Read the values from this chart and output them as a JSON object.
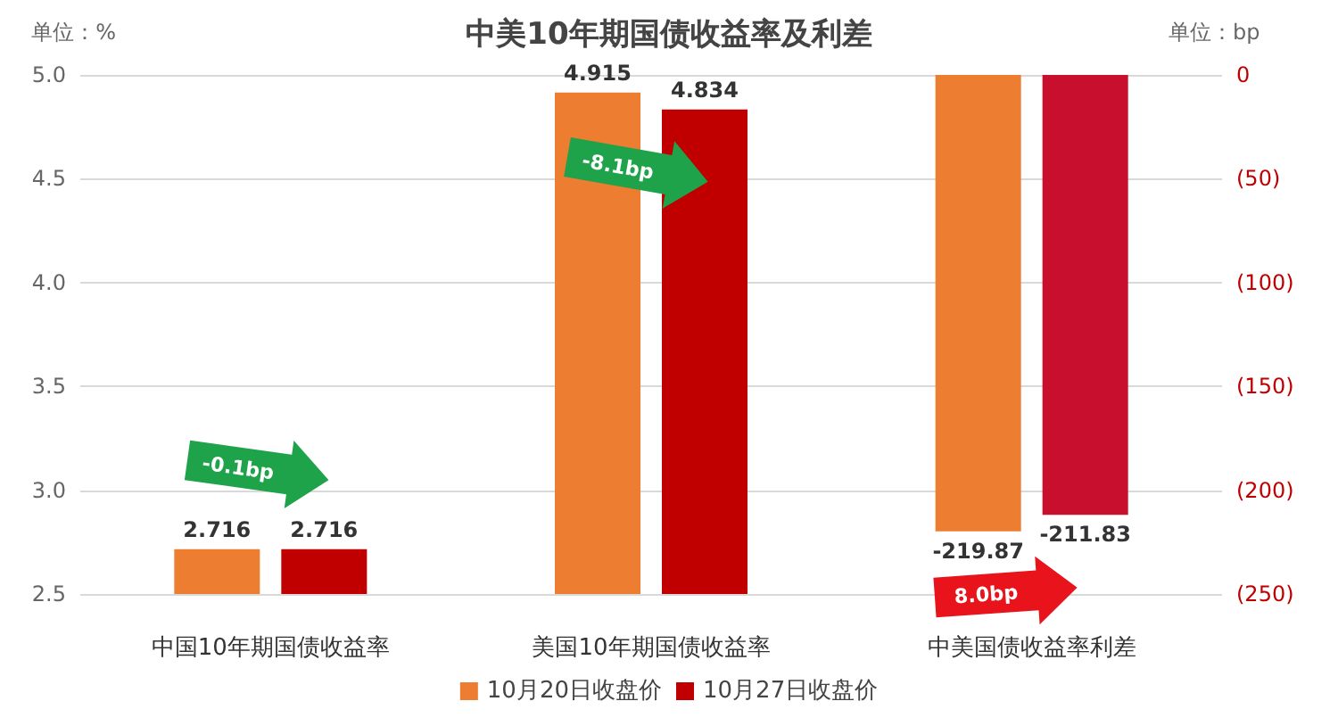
{
  "chart_data": {
    "type": "bar",
    "title": "中美10年期国债收益率及利差",
    "ylabel": "单位：%",
    "y2label": "单位：bp",
    "categories": [
      "中国10年期国债收益率",
      "美国10年期国债收益率",
      "中美国债收益率利差"
    ],
    "series": [
      {
        "name": "10月20日收盘价",
        "color": "#ed7d31",
        "values": [
          2.716,
          4.915,
          null
        ]
      },
      {
        "name": "10月27日收盘价",
        "color": "#c00000",
        "values": [
          2.716,
          4.834,
          null
        ]
      },
      {
        "color": "#ed7d31",
        "axis": "y2",
        "values": [
          null,
          null,
          -219.87
        ]
      },
      {
        "color": "#c8102e",
        "axis": "y2",
        "values": [
          null,
          null,
          -211.83
        ]
      }
    ],
    "ylim": [
      2.5,
      5.0
    ],
    "yticks": [
      {
        "value": 2.5,
        "label": "2.5"
      },
      {
        "value": 3,
        "label": "3.0"
      },
      {
        "value": 3.5,
        "label": "3.5"
      },
      {
        "value": 4,
        "label": "4.0"
      },
      {
        "value": 4.5,
        "label": "4.5"
      },
      {
        "value": 5,
        "label": "5.0"
      }
    ],
    "y2lim": [
      -250,
      0
    ],
    "y2ticks": [
      {
        "value": -250,
        "label": "(250)"
      },
      {
        "value": -200,
        "label": "(200)"
      },
      {
        "value": -150,
        "label": "(150)"
      },
      {
        "value": -100,
        "label": "(100)"
      },
      {
        "value": -50,
        "label": "(50)"
      },
      {
        "value": 0,
        "label": "0"
      }
    ],
    "annotations": [
      "-0.1bp",
      "-8.1bp",
      "8.0bp"
    ],
    "data_labels": true,
    "grid": "y",
    "legend": "bottom"
  }
}
